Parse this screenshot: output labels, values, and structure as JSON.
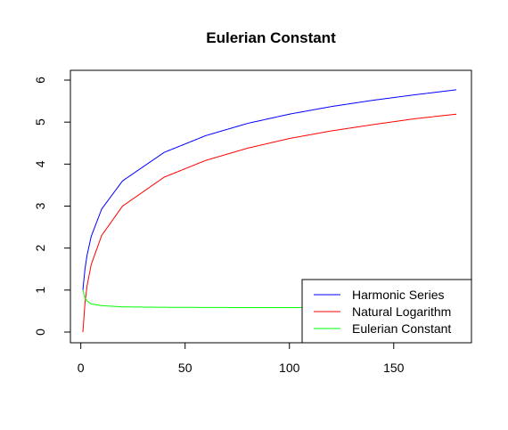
{
  "chart_data": {
    "type": "line",
    "title": "Eulerian Constant",
    "xlabel": "",
    "ylabel": "",
    "xlim": [
      1,
      180
    ],
    "ylim": [
      0,
      6
    ],
    "x_ticks": [
      0,
      50,
      100,
      150
    ],
    "y_ticks": [
      0,
      1,
      2,
      3,
      4,
      5,
      6
    ],
    "x_tick_labels": [
      "0",
      "50",
      "100",
      "150"
    ],
    "y_tick_labels": [
      "0",
      "1",
      "2",
      "3",
      "4",
      "5",
      "6"
    ],
    "grid": false,
    "legend_position": "bottom-right",
    "series": [
      {
        "name": "Harmonic Series",
        "color": "#0000ff",
        "x": [
          1,
          2,
          3,
          5,
          10,
          20,
          40,
          60,
          80,
          100,
          120,
          140,
          160,
          180
        ],
        "values": [
          1.0,
          1.5,
          1.83,
          2.28,
          2.93,
          3.6,
          4.28,
          4.68,
          4.97,
          5.19,
          5.37,
          5.52,
          5.65,
          5.77
        ]
      },
      {
        "name": "Natural Logarithm",
        "color": "#ff0000",
        "x": [
          1,
          2,
          3,
          5,
          10,
          20,
          40,
          60,
          80,
          100,
          120,
          140,
          160,
          180
        ],
        "values": [
          0.0,
          0.69,
          1.1,
          1.61,
          2.3,
          3.0,
          3.69,
          4.09,
          4.38,
          4.61,
          4.79,
          4.94,
          5.08,
          5.19
        ]
      },
      {
        "name": "Eulerian Constant",
        "color": "#00ff00",
        "x": [
          1,
          2,
          3,
          5,
          10,
          20,
          40,
          60,
          80,
          100,
          120,
          140,
          160,
          180
        ],
        "values": [
          1.0,
          0.81,
          0.74,
          0.67,
          0.63,
          0.6,
          0.59,
          0.586,
          0.583,
          0.582,
          0.581,
          0.58,
          0.58,
          0.58
        ]
      }
    ]
  }
}
